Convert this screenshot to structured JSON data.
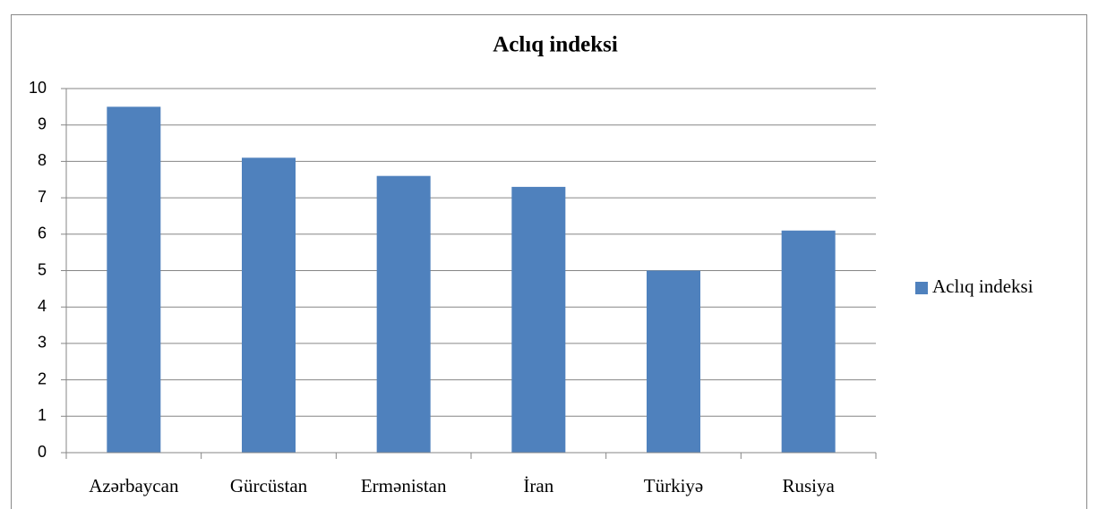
{
  "chart_data": {
    "type": "bar",
    "title": "Aclıq indeksi",
    "categories": [
      "Azərbaycan",
      "Gürcüstan",
      "Ermənistan",
      "İran",
      "Türkiyə",
      "Rusiya"
    ],
    "series": [
      {
        "name": "Aclıq indeksi",
        "color": "#4f81bd",
        "values": [
          9.5,
          8.1,
          7.6,
          7.3,
          5,
          6.1
        ]
      }
    ],
    "ylim": [
      0,
      10
    ],
    "yticks": [
      0,
      1,
      2,
      3,
      4,
      5,
      6,
      7,
      8,
      9,
      10
    ],
    "grid": true,
    "legend": "right"
  }
}
